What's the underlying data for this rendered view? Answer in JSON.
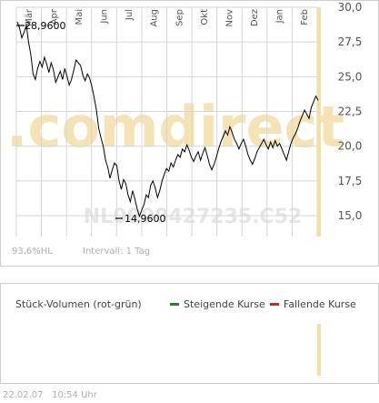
{
  "price_panel": {
    "watermark_brand": ".comdirect",
    "watermark_id": "NL0000427235.C52",
    "max_label": "28,9600",
    "min_label": "14,9600",
    "status_change": "93,6%HL",
    "status_interval": "Intervall: 1 Tag"
  },
  "volume_panel": {
    "title": "Stück-Volumen (rot-grün)",
    "legend_up": "Steigende Kurse",
    "legend_down": "Fallende Kurse",
    "color_up": "#2e7d32",
    "color_down": "#c62828"
  },
  "footer": {
    "date": "22.02.07",
    "time": "10:54 Uhr"
  },
  "colors": {
    "line": "#000000",
    "grid": "#d6d6d6",
    "highlight_bar": "#f6dea0",
    "watermark_orange": "#f5e3b5",
    "watermark_gray": "#e6e6e6"
  },
  "chart_data": {
    "type": "line",
    "x_tick_labels": [
      "Mär",
      "Apr",
      "Mai",
      "Jun",
      "Jul",
      "Aug",
      "Sep",
      "Okt",
      "Nov",
      "Dez",
      "Jan",
      "Feb"
    ],
    "y_tick_labels": [
      "30,0",
      "27,5",
      "25,0",
      "22,5",
      "20,0",
      "17,5",
      "15,0"
    ],
    "ylim": [
      13.5,
      30.0
    ],
    "y_ticks": [
      30.0,
      27.5,
      25.0,
      22.5,
      20.0,
      17.5,
      15.0
    ],
    "grid": true,
    "series": [
      {
        "values": [
          28.96,
          28.5,
          27.8,
          28.2,
          28.7,
          27.5,
          26.6,
          25.2,
          24.8,
          25.6,
          26.1,
          25.7,
          26.4,
          25.9,
          25.3,
          26.0,
          25.5,
          24.6,
          25.0,
          25.4,
          24.8,
          25.6,
          25.0,
          24.4,
          24.8,
          25.5,
          26.2,
          26.0,
          25.8,
          25.1,
          24.7,
          25.2,
          24.9,
          24.3,
          23.5,
          22.6,
          21.3,
          20.6,
          20.0,
          19.0,
          18.5,
          17.7,
          18.3,
          18.8,
          18.6,
          17.5,
          16.9,
          17.6,
          17.3,
          16.5,
          16.0,
          16.8,
          16.2,
          15.5,
          14.96,
          15.4,
          15.8,
          16.5,
          16.3,
          17.2,
          17.5,
          17.0,
          16.3,
          16.8,
          17.5,
          18.0,
          18.4,
          18.2,
          18.8,
          18.5,
          19.0,
          19.4,
          19.2,
          19.8,
          19.6,
          20.1,
          19.7,
          19.2,
          18.9,
          19.3,
          19.6,
          19.0,
          19.5,
          19.9,
          19.3,
          18.7,
          18.3,
          18.7,
          19.2,
          19.8,
          20.3,
          20.7,
          21.1,
          20.8,
          21.4,
          21.0,
          20.5,
          20.2,
          19.8,
          20.2,
          20.5,
          20.0,
          19.4,
          19.0,
          18.7,
          19.1,
          19.6,
          19.9,
          20.2,
          20.5,
          20.1,
          19.8,
          20.3,
          19.9,
          20.4,
          20.0,
          20.2,
          19.8,
          19.4,
          19.0,
          19.6,
          20.2,
          20.6,
          20.9,
          21.3,
          21.8,
          22.2,
          22.6,
          22.3,
          22.0,
          22.8,
          23.2,
          23.6,
          23.3
        ]
      }
    ]
  }
}
